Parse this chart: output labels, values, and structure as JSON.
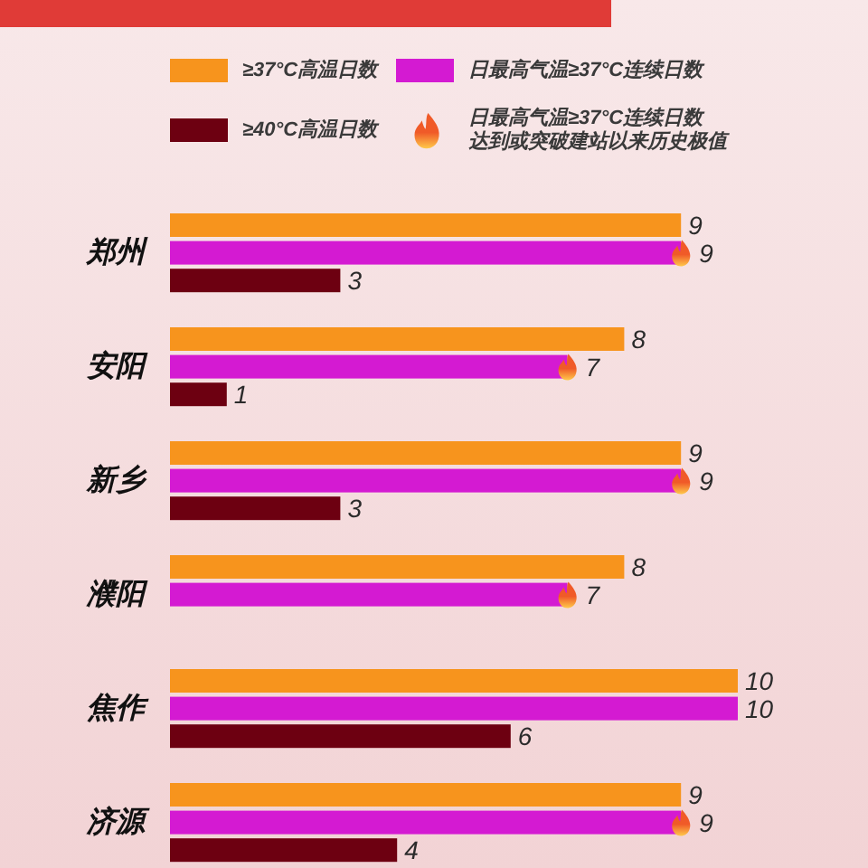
{
  "chart_data": {
    "type": "bar",
    "orientation": "horizontal",
    "categories": [
      "郑州",
      "安阳",
      "新乡",
      "濮阳",
      "焦作",
      "济源"
    ],
    "series": [
      {
        "name": "≥37°C高温日数",
        "color": "#f7941d",
        "values": [
          9,
          8,
          9,
          8,
          10,
          9
        ],
        "value_labels": [
          "9",
          "8",
          "9",
          "8",
          "10",
          "9"
        ]
      },
      {
        "name": "日最高气温≥37°C连续日数",
        "color": "#d41ad2",
        "values": [
          9,
          7,
          9,
          7,
          10,
          9
        ],
        "value_labels": [
          "9",
          "7",
          "9",
          "7",
          "10",
          "9"
        ]
      },
      {
        "type": "scatter",
        "name": "日最高气温≥37°C连续日数达到或突破建站以来历史极值",
        "color": "#f05a28",
        "values": [
          9,
          7,
          9,
          7,
          null,
          9
        ]
      },
      {
        "name": "≥40°C高温日数",
        "color": "#6d0011",
        "values": [
          3,
          1,
          3,
          null,
          6,
          4
        ],
        "value_labels": [
          "3",
          "1",
          "3",
          null,
          "6",
          "4"
        ]
      }
    ],
    "legend": "top"
  }
}
